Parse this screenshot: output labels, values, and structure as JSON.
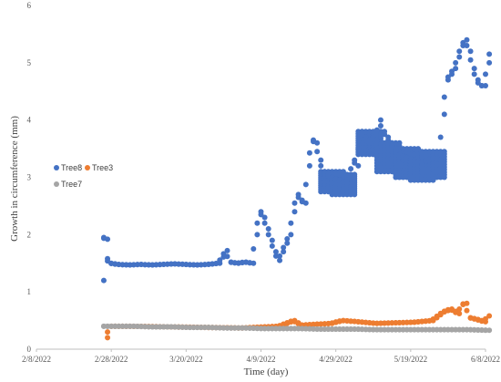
{
  "chart_data": {
    "type": "scatter",
    "xlabel": "Time (day)",
    "ylabel": "Growth in circumference (mm)",
    "xlim": [
      "2022-02-08",
      "2022-06-08"
    ],
    "ylim": [
      0,
      6
    ],
    "x_ticks": [
      "2/8/2022",
      "2/28/2022",
      "3/20/2022",
      "4/9/2022",
      "4/29/2022",
      "5/19/2022",
      "6/8/2022"
    ],
    "y_ticks": [
      "0",
      "1",
      "2",
      "3",
      "4",
      "5",
      "6"
    ],
    "grid": false,
    "legend_position": "left",
    "series": [
      {
        "name": "Tree8",
        "color": "#4472C4",
        "points": [
          [
            "2022-02-26",
            1.2
          ],
          [
            "2022-02-26",
            1.95
          ],
          [
            "2022-02-27",
            1.92
          ],
          [
            "2022-02-27",
            1.58
          ],
          [
            "2022-02-28",
            1.5
          ],
          [
            "2022-03-02",
            1.48
          ],
          [
            "2022-03-05",
            1.47
          ],
          [
            "2022-03-08",
            1.48
          ],
          [
            "2022-03-11",
            1.47
          ],
          [
            "2022-03-14",
            1.48
          ],
          [
            "2022-03-17",
            1.49
          ],
          [
            "2022-03-20",
            1.48
          ],
          [
            "2022-03-23",
            1.47
          ],
          [
            "2022-03-26",
            1.48
          ],
          [
            "2022-03-29",
            1.5
          ],
          [
            "2022-03-31",
            1.72
          ],
          [
            "2022-04-01",
            1.52
          ],
          [
            "2022-04-03",
            1.5
          ],
          [
            "2022-04-05",
            1.52
          ],
          [
            "2022-04-07",
            1.5
          ],
          [
            "2022-04-08",
            2.0
          ],
          [
            "2022-04-09",
            2.4
          ],
          [
            "2022-04-10",
            2.3
          ],
          [
            "2022-04-11",
            2.1
          ],
          [
            "2022-04-12",
            1.9
          ],
          [
            "2022-04-13",
            1.7
          ],
          [
            "2022-04-14",
            1.55
          ],
          [
            "2022-04-15",
            1.7
          ],
          [
            "2022-04-16",
            1.85
          ],
          [
            "2022-04-17",
            2.0
          ],
          [
            "2022-04-18",
            2.4
          ],
          [
            "2022-04-19",
            2.7
          ],
          [
            "2022-04-20",
            2.6
          ],
          [
            "2022-04-21",
            2.55
          ],
          [
            "2022-04-22",
            3.2
          ],
          [
            "2022-04-23",
            3.65
          ],
          [
            "2022-04-24",
            3.6
          ],
          [
            "2022-04-25",
            3.3
          ],
          [
            "2022-04-26",
            3.1
          ],
          [
            "2022-04-28",
            3.0
          ],
          [
            "2022-04-30",
            2.95
          ],
          [
            "2022-05-02",
            2.9
          ],
          [
            "2022-05-03",
            3.0
          ],
          [
            "2022-05-04",
            3.3
          ],
          [
            "2022-05-05",
            3.2
          ],
          [
            "2022-05-06",
            3.8
          ],
          [
            "2022-05-07",
            3.7
          ],
          [
            "2022-05-08",
            3.6
          ],
          [
            "2022-05-09",
            3.7
          ],
          [
            "2022-05-10",
            3.65
          ],
          [
            "2022-05-11",
            4.0
          ],
          [
            "2022-05-12",
            3.8
          ],
          [
            "2022-05-13",
            3.7
          ],
          [
            "2022-05-14",
            3.6
          ],
          [
            "2022-05-15",
            3.5
          ],
          [
            "2022-05-16",
            3.4
          ],
          [
            "2022-05-18",
            3.35
          ],
          [
            "2022-05-20",
            3.3
          ],
          [
            "2022-05-22",
            3.25
          ],
          [
            "2022-05-24",
            3.3
          ],
          [
            "2022-05-26",
            3.35
          ],
          [
            "2022-05-27",
            3.3
          ],
          [
            "2022-05-28",
            4.1
          ],
          [
            "2022-05-29",
            4.7
          ],
          [
            "2022-05-30",
            4.8
          ],
          [
            "2022-05-31",
            4.9
          ],
          [
            "2022-06-01",
            5.1
          ],
          [
            "2022-06-02",
            5.3
          ],
          [
            "2022-06-03",
            5.4
          ],
          [
            "2022-06-04",
            5.2
          ],
          [
            "2022-06-05",
            4.9
          ],
          [
            "2022-06-06",
            4.7
          ],
          [
            "2022-06-07",
            4.6
          ],
          [
            "2022-06-08",
            4.6
          ],
          [
            "2022-06-09",
            5.0
          ],
          [
            "2022-06-09",
            5.15
          ]
        ],
        "bands": [
          [
            "2022-05-08",
            3.4,
            3.8
          ],
          [
            "2022-05-13",
            3.1,
            3.6
          ],
          [
            "2022-05-18",
            3.0,
            3.5
          ],
          [
            "2022-05-22",
            2.95,
            3.4
          ],
          [
            "2022-05-25",
            3.0,
            3.45
          ],
          [
            "2022-04-28",
            2.75,
            3.1
          ],
          [
            "2022-05-01",
            2.7,
            3.05
          ]
        ]
      },
      {
        "name": "Tree3",
        "color": "#ED7D31",
        "points": [
          [
            "2022-02-27",
            0.2
          ],
          [
            "2022-02-28",
            0.4
          ],
          [
            "2022-03-05",
            0.4
          ],
          [
            "2022-03-15",
            0.39
          ],
          [
            "2022-03-25",
            0.38
          ],
          [
            "2022-04-04",
            0.37
          ],
          [
            "2022-04-14",
            0.4
          ],
          [
            "2022-04-18",
            0.5
          ],
          [
            "2022-04-20",
            0.42
          ],
          [
            "2022-04-28",
            0.45
          ],
          [
            "2022-05-01",
            0.5
          ],
          [
            "2022-05-05",
            0.48
          ],
          [
            "2022-05-10",
            0.45
          ],
          [
            "2022-05-15",
            0.46
          ],
          [
            "2022-05-20",
            0.47
          ],
          [
            "2022-05-25",
            0.5
          ],
          [
            "2022-05-28",
            0.65
          ],
          [
            "2022-05-30",
            0.7
          ],
          [
            "2022-06-01",
            0.62
          ],
          [
            "2022-06-02",
            0.78
          ],
          [
            "2022-06-03",
            0.8
          ],
          [
            "2022-06-04",
            0.55
          ],
          [
            "2022-06-06",
            0.52
          ],
          [
            "2022-06-08",
            0.48
          ],
          [
            "2022-06-09",
            0.58
          ]
        ]
      },
      {
        "name": "Tree7",
        "color": "#A5A5A5",
        "points": [
          [
            "2022-02-26",
            0.4
          ],
          [
            "2022-03-01",
            0.4
          ],
          [
            "2022-03-06",
            0.4
          ],
          [
            "2022-03-11",
            0.39
          ],
          [
            "2022-03-16",
            0.39
          ],
          [
            "2022-03-21",
            0.38
          ],
          [
            "2022-03-26",
            0.38
          ],
          [
            "2022-03-31",
            0.37
          ],
          [
            "2022-04-05",
            0.37
          ],
          [
            "2022-04-10",
            0.36
          ],
          [
            "2022-04-15",
            0.36
          ],
          [
            "2022-04-20",
            0.36
          ],
          [
            "2022-04-25",
            0.35
          ],
          [
            "2022-04-30",
            0.35
          ],
          [
            "2022-05-05",
            0.35
          ],
          [
            "2022-05-10",
            0.34
          ],
          [
            "2022-05-15",
            0.34
          ],
          [
            "2022-05-20",
            0.34
          ],
          [
            "2022-05-25",
            0.34
          ],
          [
            "2022-05-30",
            0.34
          ],
          [
            "2022-06-04",
            0.34
          ],
          [
            "2022-06-09",
            0.33
          ]
        ]
      }
    ]
  }
}
